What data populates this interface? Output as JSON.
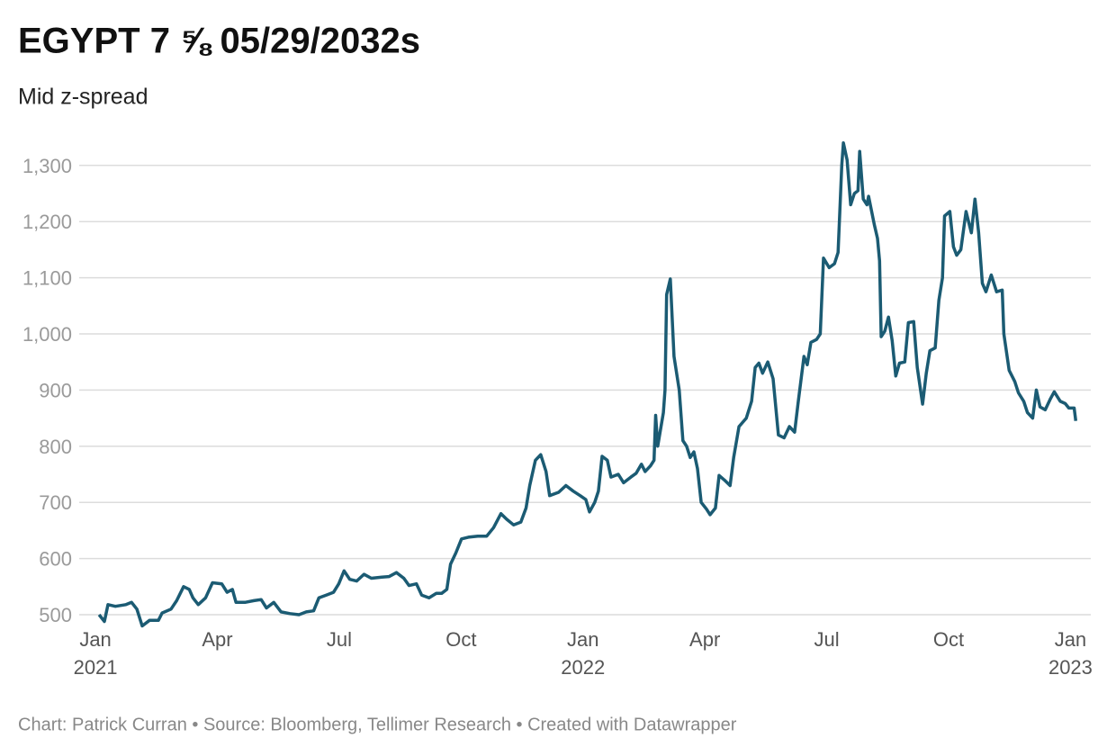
{
  "chart_data": {
    "type": "line",
    "title": "EGYPT 7 ⅝ 05/29/2032s",
    "subtitle": "Mid z-spread",
    "source": "Chart: Patrick Curran • Source: Bloomberg, Tellimer Research • Created with Datawrapper",
    "x": [
      0.09,
      0.22,
      0.31,
      0.49,
      0.75,
      0.89,
      1.02,
      1.15,
      1.33,
      1.55,
      1.64,
      1.86,
      2.0,
      2.17,
      2.31,
      2.4,
      2.53,
      2.71,
      2.88,
      3.11,
      3.24,
      3.37,
      3.46,
      3.68,
      3.9,
      4.08,
      4.21,
      4.39,
      4.57,
      4.79,
      5.01,
      5.19,
      5.37,
      5.5,
      5.68,
      5.86,
      5.99,
      6.12,
      6.26,
      6.43,
      6.61,
      6.79,
      7.05,
      7.23,
      7.41,
      7.59,
      7.72,
      7.9,
      8.03,
      8.21,
      8.39,
      8.52,
      8.65,
      8.74,
      8.87,
      9.01,
      9.18,
      9.41,
      9.63,
      9.8,
      9.98,
      10.12,
      10.29,
      10.47,
      10.6,
      10.69,
      10.83,
      10.96,
      11.09,
      11.18,
      11.4,
      11.58,
      11.76,
      11.93,
      12.07,
      12.16,
      12.29,
      12.38,
      12.47,
      12.6,
      12.69,
      12.87,
      13.0,
      13.18,
      13.31,
      13.44,
      13.53,
      13.66,
      13.75,
      13.79,
      13.84,
      13.98,
      14.02,
      14.06,
      14.15,
      14.24,
      14.37,
      14.46,
      14.55,
      14.64,
      14.73,
      14.82,
      14.91,
      15.04,
      15.13,
      15.26,
      15.35,
      15.48,
      15.62,
      15.71,
      15.84,
      16.02,
      16.15,
      16.24,
      16.33,
      16.42,
      16.55,
      16.68,
      16.81,
      16.95,
      17.08,
      17.21,
      17.3,
      17.44,
      17.52,
      17.61,
      17.75,
      17.84,
      17.92,
      18.06,
      18.19,
      18.28,
      18.37,
      18.41,
      18.5,
      18.59,
      18.68,
      18.77,
      18.81,
      18.9,
      18.99,
      19.03,
      19.17,
      19.25,
      19.3,
      19.34,
      19.43,
      19.52,
      19.61,
      19.7,
      19.79,
      19.92,
      20.01,
      20.14,
      20.23,
      20.36,
      20.45,
      20.54,
      20.67,
      20.76,
      20.85,
      20.9,
      21.03,
      21.12,
      21.2,
      21.3,
      21.43,
      21.56,
      21.65,
      21.74,
      21.83,
      21.92,
      22.05,
      22.18,
      22.32,
      22.36,
      22.49,
      22.63,
      22.72,
      22.85,
      22.94,
      23.07,
      23.16,
      23.25,
      23.38,
      23.51,
      23.6,
      23.75,
      23.87,
      23.96,
      24.09,
      24.13
    ],
    "series": [
      {
        "name": "Mid z-spread",
        "color": "#1b5b73",
        "values": [
          500,
          488,
          518,
          515,
          518,
          522,
          510,
          480,
          490,
          490,
          503,
          510,
          525,
          550,
          545,
          530,
          518,
          530,
          557,
          555,
          540,
          545,
          522,
          522,
          525,
          527,
          512,
          522,
          505,
          502,
          500,
          505,
          507,
          530,
          535,
          540,
          555,
          578,
          563,
          560,
          572,
          565,
          567,
          568,
          575,
          565,
          552,
          555,
          535,
          530,
          538,
          538,
          545,
          590,
          610,
          635,
          638,
          640,
          640,
          655,
          680,
          670,
          660,
          665,
          690,
          730,
          775,
          785,
          755,
          712,
          718,
          730,
          720,
          712,
          705,
          683,
          700,
          720,
          782,
          775,
          745,
          750,
          735,
          745,
          752,
          768,
          755,
          765,
          775,
          855,
          800,
          860,
          900,
          1070,
          1098,
          960,
          900,
          810,
          800,
          780,
          790,
          760,
          700,
          688,
          678,
          690,
          748,
          740,
          730,
          780,
          835,
          850,
          880,
          940,
          948,
          930,
          950,
          920,
          820,
          815,
          835,
          825,
          880,
          960,
          945,
          985,
          990,
          1000,
          1135,
          1118,
          1125,
          1145,
          1300,
          1340,
          1310,
          1230,
          1250,
          1255,
          1325,
          1240,
          1230,
          1245,
          1195,
          1170,
          1130,
          995,
          1005,
          1030,
          988,
          925,
          948,
          950,
          1020,
          1022,
          940,
          875,
          930,
          970,
          975,
          1060,
          1100,
          1210,
          1218,
          1155,
          1140,
          1150,
          1218,
          1180,
          1240,
          1180,
          1090,
          1075,
          1105,
          1075,
          1078,
          1000,
          935,
          915,
          895,
          880,
          860,
          850,
          900,
          870,
          865,
          885,
          897,
          880,
          876,
          868,
          868,
          845
        ]
      }
    ],
    "xlim": [
      -0.4,
      24.5
    ],
    "xticks": [
      {
        "value": 0,
        "label": "Jan 2021"
      },
      {
        "value": 3,
        "label": "Apr"
      },
      {
        "value": 6,
        "label": "Jul"
      },
      {
        "value": 9,
        "label": "Oct"
      },
      {
        "value": 12,
        "label": "Jan 2022"
      },
      {
        "value": 15,
        "label": "Apr"
      },
      {
        "value": 18,
        "label": "Jul"
      },
      {
        "value": 21,
        "label": "Oct"
      },
      {
        "value": 24,
        "label": "Jan 2023"
      }
    ],
    "ylim": [
      480,
      1350
    ],
    "yticks": [
      500,
      600,
      700,
      800,
      900,
      {
        "value": 1000,
        "label": "1,000"
      },
      {
        "value": 1100,
        "label": "1,100"
      },
      {
        "value": 1200,
        "label": "1,200"
      },
      {
        "value": 1300,
        "label": "1,300"
      }
    ],
    "grid": true
  }
}
